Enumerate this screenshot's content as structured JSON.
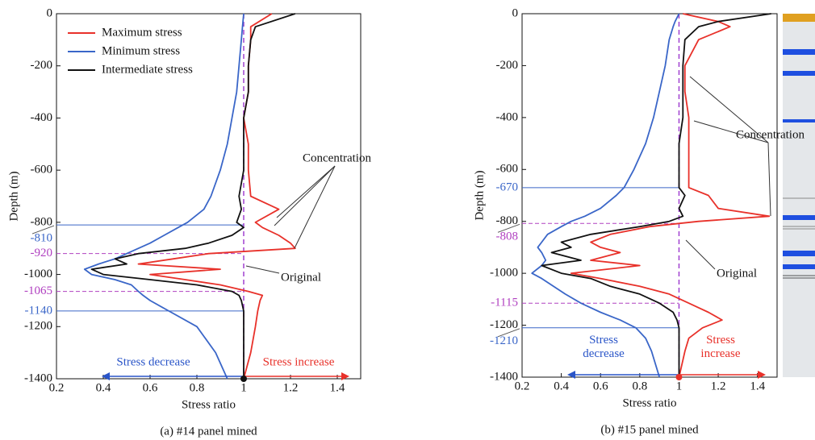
{
  "chart_data": [
    {
      "type": "line",
      "caption": "(a) #14 panel mined",
      "xlabel": "Stress ratio",
      "ylabel": "Depth (m)",
      "xlim": [
        0.2,
        1.5
      ],
      "xticks": [
        0.2,
        0.4,
        0.6,
        0.8,
        1.0,
        1.2,
        1.4
      ],
      "ylim": [
        -1400,
        0
      ],
      "yticks": [
        0,
        -200,
        -400,
        -600,
        -800,
        -1000,
        -1200,
        -1400
      ],
      "legend": "upper left",
      "reference": 1.0,
      "y": [
        0,
        -50,
        -100,
        -200,
        -300,
        -400,
        -500,
        -600,
        -700,
        -750,
        -800,
        -820,
        -850,
        -880,
        -900,
        -920,
        -940,
        -960,
        -980,
        -1000,
        -1020,
        -1040,
        -1065,
        -1080,
        -1100,
        -1140,
        -1200,
        -1300,
        -1400
      ],
      "series": [
        {
          "name": "Maximum stress",
          "color": "#e8312a",
          "values": [
            1.12,
            1.03,
            1.03,
            1.02,
            1.02,
            1.0,
            1.02,
            1.02,
            1.03,
            1.15,
            1.05,
            1.08,
            1.15,
            1.2,
            1.22,
            0.85,
            0.7,
            0.55,
            0.9,
            0.6,
            0.75,
            0.9,
            1.02,
            1.08,
            1.07,
            1.06,
            1.05,
            1.03,
            1.0
          ]
        },
        {
          "name": "Minimum stress",
          "color": "#3a66c8",
          "values": [
            1.0,
            0.995,
            0.99,
            0.98,
            0.97,
            0.95,
            0.93,
            0.9,
            0.86,
            0.83,
            0.76,
            0.72,
            0.66,
            0.6,
            0.55,
            0.5,
            0.45,
            0.38,
            0.32,
            0.35,
            0.45,
            0.52,
            0.55,
            0.57,
            0.6,
            0.68,
            0.8,
            0.88,
            0.93
          ]
        },
        {
          "name": "Intermediate stress",
          "color": "#111111",
          "values": [
            1.22,
            1.05,
            1.03,
            1.02,
            1.02,
            1.0,
            1.0,
            1.0,
            0.98,
            0.99,
            0.97,
            1.0,
            0.95,
            0.85,
            0.75,
            0.55,
            0.45,
            0.5,
            0.35,
            0.4,
            0.6,
            0.8,
            0.95,
            0.98,
            0.99,
            1.0,
            1.0,
            1.0,
            1.0
          ]
        }
      ],
      "markers": [
        {
          "depth": -810,
          "color": "#3a66c8"
        },
        {
          "depth": -920,
          "color": "#b040c0"
        },
        {
          "depth": -1065,
          "color": "#b040c0"
        },
        {
          "depth": -1140,
          "color": "#3a66c8"
        }
      ],
      "annotations": [
        "Concentration",
        "Original",
        "Stress decrease",
        "Stress increase"
      ]
    },
    {
      "type": "line",
      "caption": "(b) #15 panel mined",
      "xlabel": "Stress ratio",
      "ylabel": "Depth (m)",
      "xlim": [
        0.2,
        1.5
      ],
      "xticks": [
        0.2,
        0.4,
        0.6,
        0.8,
        1.0,
        1.2,
        1.4
      ],
      "ylim": [
        -1400,
        0
      ],
      "yticks": [
        0,
        -200,
        -400,
        -600,
        -800,
        -1000,
        -1200,
        -1400
      ],
      "reference": 1.0,
      "y": [
        0,
        -30,
        -50,
        -100,
        -200,
        -300,
        -400,
        -500,
        -600,
        -670,
        -700,
        -750,
        -780,
        -800,
        -820,
        -850,
        -880,
        -900,
        -920,
        -950,
        -970,
        -1000,
        -1020,
        -1050,
        -1080,
        -1115,
        -1150,
        -1180,
        -1210,
        -1250,
        -1300,
        -1400
      ],
      "series": [
        {
          "name": "Maximum stress",
          "color": "#e8312a",
          "values": [
            1.02,
            1.2,
            1.26,
            1.1,
            1.03,
            1.03,
            1.05,
            1.05,
            1.05,
            1.05,
            1.15,
            1.2,
            1.46,
            1.1,
            0.85,
            0.65,
            0.55,
            0.6,
            0.7,
            0.55,
            0.8,
            0.45,
            0.6,
            0.8,
            0.95,
            1.05,
            1.15,
            1.22,
            1.12,
            1.05,
            1.03,
            1.0
          ]
        },
        {
          "name": "Minimum stress",
          "color": "#3a66c8",
          "values": [
            1.0,
            0.98,
            0.97,
            0.95,
            0.93,
            0.9,
            0.87,
            0.83,
            0.77,
            0.72,
            0.68,
            0.6,
            0.52,
            0.45,
            0.4,
            0.33,
            0.3,
            0.28,
            0.3,
            0.32,
            0.3,
            0.25,
            0.3,
            0.36,
            0.42,
            0.5,
            0.6,
            0.7,
            0.78,
            0.83,
            0.86,
            0.9
          ]
        },
        {
          "name": "Intermediate stress",
          "color": "#111111",
          "values": [
            1.47,
            1.2,
            1.1,
            1.03,
            1.02,
            1.02,
            1.02,
            1.0,
            1.0,
            1.0,
            1.03,
            1.0,
            1.02,
            0.95,
            0.8,
            0.55,
            0.4,
            0.45,
            0.35,
            0.5,
            0.3,
            0.4,
            0.55,
            0.65,
            0.8,
            0.9,
            0.97,
            0.99,
            1.0,
            1.0,
            1.0,
            1.0
          ]
        }
      ],
      "markers": [
        {
          "depth": -670,
          "color": "#3a66c8"
        },
        {
          "depth": -808,
          "color": "#b040c0"
        },
        {
          "depth": -1115,
          "color": "#b040c0"
        },
        {
          "depth": -1210,
          "color": "#3a66c8"
        }
      ],
      "annotations": [
        "Concentration",
        "Original",
        "Stress decrease",
        "Stress increase"
      ]
    }
  ]
}
